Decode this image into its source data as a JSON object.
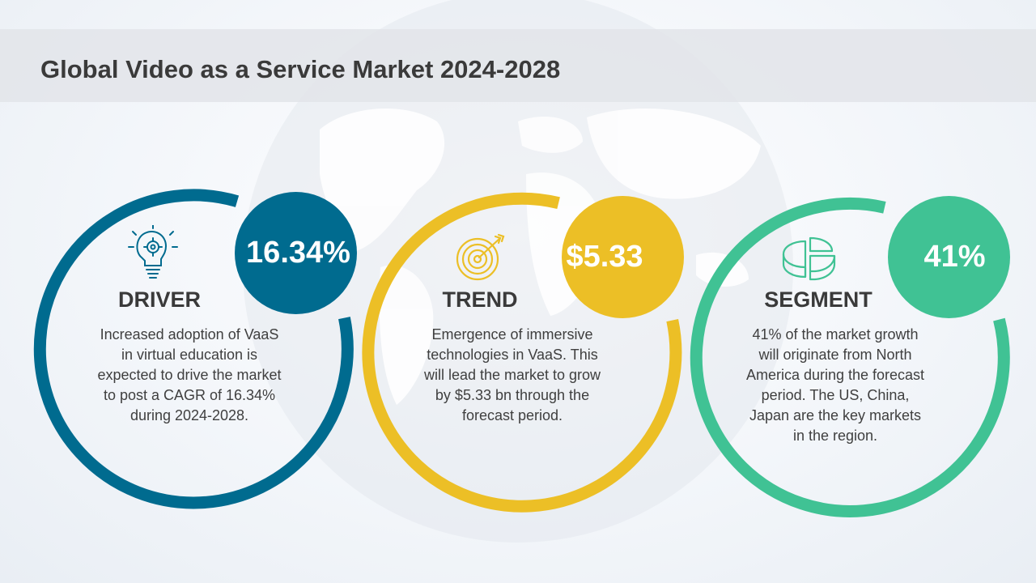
{
  "title": "Global Video as a Service Market 2024-2028",
  "colors": {
    "driver": "#006b8f",
    "trend": "#ecbf26",
    "segment": "#40c294"
  },
  "cards": [
    {
      "value": "16.34%",
      "heading": "DRIVER",
      "icon": "lightbulb-gear-icon",
      "text": "Increased adoption of VaaS in virtual education is expected to drive the market to post a CAGR of 16.34% during 2024-2028."
    },
    {
      "value": "$5.33",
      "heading": "TREND",
      "icon": "target-arrow-icon",
      "text": "Emergence of immersive technologies in VaaS. This will lead the market to grow by $5.33 bn through the forecast period."
    },
    {
      "value": "41%",
      "heading": "SEGMENT",
      "icon": "pie-chart-icon",
      "text": "41% of the market growth will originate from North America during the forecast period. The US, China, Japan are the key markets in the region."
    }
  ]
}
